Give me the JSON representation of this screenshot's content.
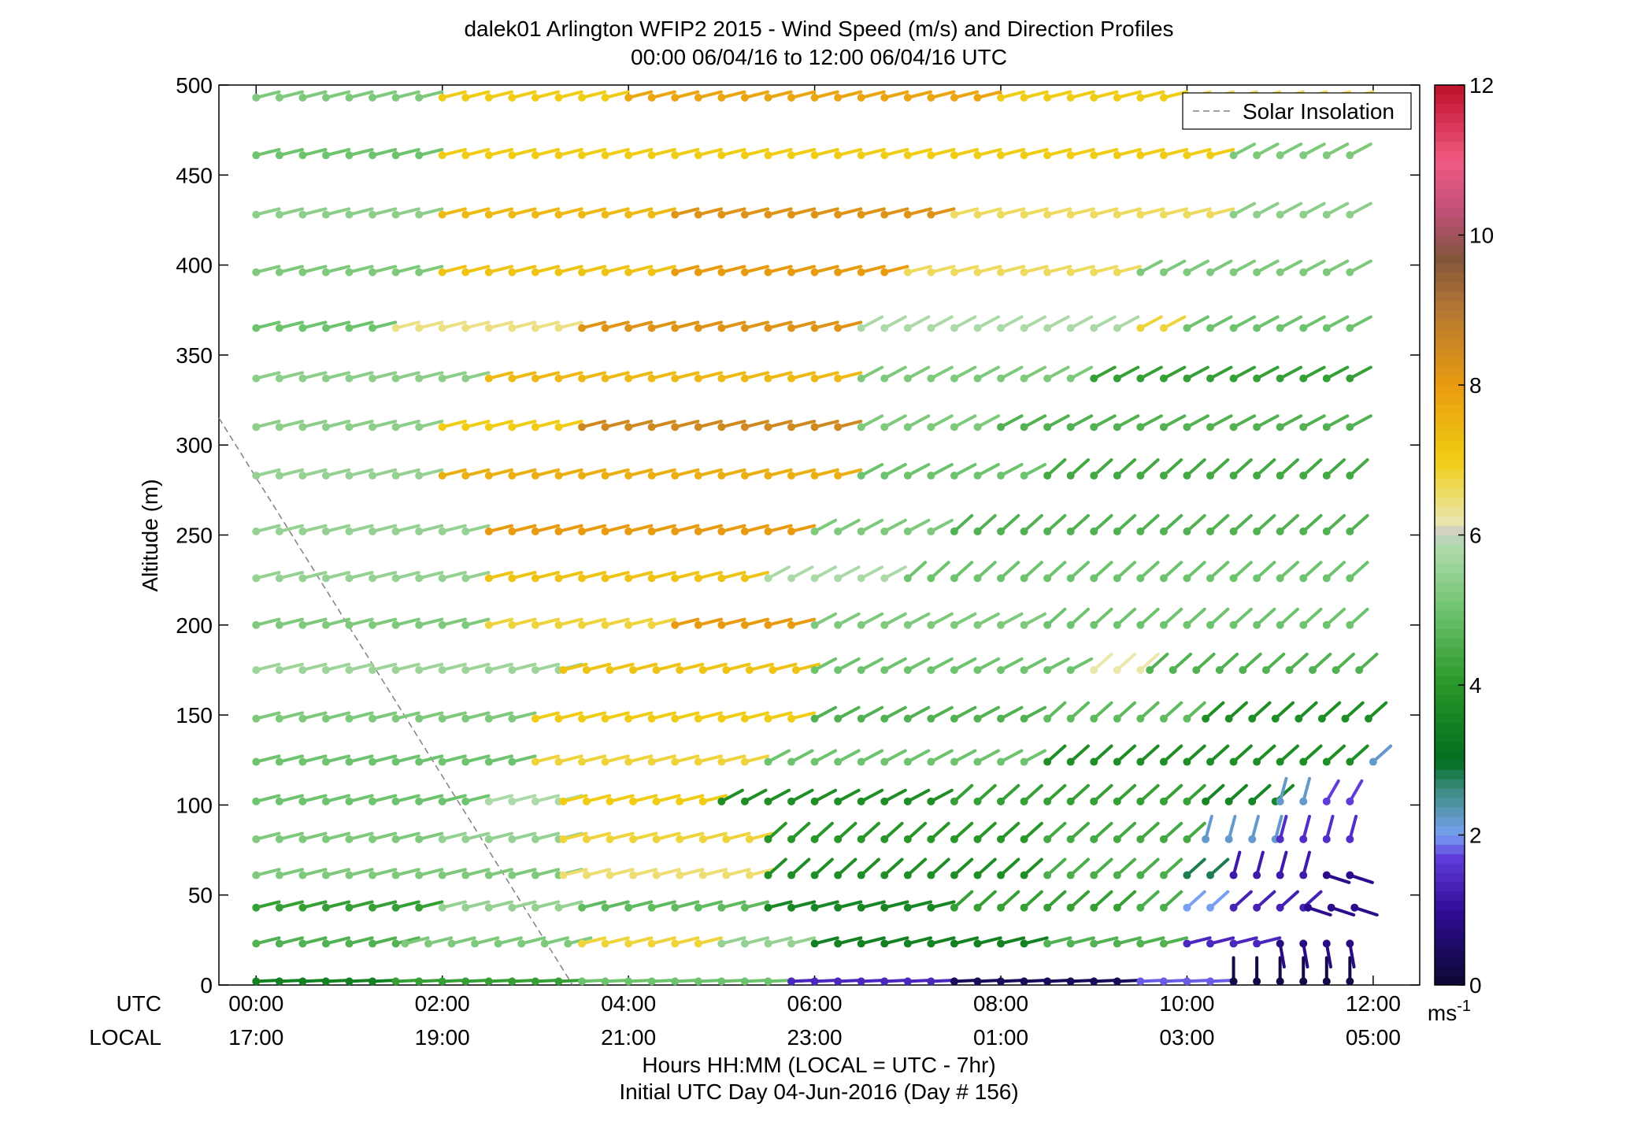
{
  "chart_data": {
    "type": "wind-barb-profile",
    "title_line1": "dalek01 Arlington WFIP2 2015 - Wind Speed (m/s) and Direction Profiles",
    "title_line2": "00:00 06/04/16 to 12:00 06/04/16  UTC",
    "ylabel": "Altitude (m)",
    "ylim": [
      0,
      500
    ],
    "yticks": [
      "0",
      "50",
      "100",
      "150",
      "200",
      "250",
      "300",
      "350",
      "400",
      "450",
      "500"
    ],
    "xlim_hours": [
      -0.4,
      12.5
    ],
    "utc_row_label": "UTC",
    "local_row_label": "LOCAL",
    "utc_ticks": [
      "00:00",
      "02:00",
      "04:00",
      "06:00",
      "08:00",
      "10:00",
      "12:00"
    ],
    "local_ticks": [
      "17:00",
      "19:00",
      "21:00",
      "23:00",
      "01:00",
      "03:00",
      "05:00"
    ],
    "xlabel_line1": "Hours HH:MM  (LOCAL = UTC - 7hr)",
    "xlabel_line2": "Initial UTC Day 04-Jun-2016 (Day # 156)",
    "legend": {
      "label": "Solar Insolation",
      "position": "top-right",
      "line_color": "#808080"
    },
    "solar_insolation_line": {
      "x_hours": [
        -0.4,
        3.4
      ],
      "y_m": [
        315,
        0
      ]
    },
    "colorbar": {
      "min": 0,
      "max": 12,
      "ticks": [
        "0",
        "2",
        "4",
        "6",
        "8",
        "10",
        "12"
      ],
      "unit_base": "ms",
      "unit_exp": "-1"
    },
    "time_step_hours": 0.25,
    "altitudes_m": [
      2,
      23,
      43,
      61,
      81,
      102,
      124,
      148,
      175,
      200,
      226,
      252,
      283,
      310,
      337,
      365,
      396,
      428,
      461,
      493
    ],
    "rows": [
      {
        "altitude": 2,
        "segments": [
          [
            0,
            1.5,
            3.5,
            "L"
          ],
          [
            1.5,
            3.5,
            4.2,
            "L"
          ],
          [
            3.5,
            5.8,
            5.0,
            "L"
          ],
          [
            5.75,
            7.5,
            1.4,
            "L"
          ],
          [
            7.5,
            9.5,
            0.4,
            "L"
          ],
          [
            9.5,
            10.5,
            1.8,
            "L"
          ],
          [
            10.5,
            12.0,
            0.2,
            "V"
          ]
        ]
      },
      {
        "altitude": 23,
        "segments": [
          [
            0,
            1.6,
            4.6,
            "W"
          ],
          [
            1.6,
            3.5,
            5.2,
            "W"
          ],
          [
            3.5,
            5.0,
            6.8,
            "W"
          ],
          [
            5.0,
            6.0,
            5.5,
            "W"
          ],
          [
            6.0,
            8.5,
            3.5,
            "W"
          ],
          [
            8.5,
            10.0,
            4.6,
            "W"
          ],
          [
            10.0,
            11.0,
            1.4,
            "W"
          ],
          [
            11.0,
            12.0,
            0.8,
            "N"
          ]
        ]
      },
      {
        "altitude": 43,
        "segments": [
          [
            0,
            2.0,
            4.2,
            "W"
          ],
          [
            2.0,
            3.5,
            5.5,
            "W"
          ],
          [
            3.5,
            5.5,
            4.8,
            "W"
          ],
          [
            5.5,
            7.5,
            3.6,
            "W"
          ],
          [
            7.5,
            9.5,
            4.2,
            "SW"
          ],
          [
            9.5,
            10.0,
            4.5,
            "SW"
          ],
          [
            10.0,
            10.5,
            2.0,
            "SW"
          ],
          [
            10.5,
            11.3,
            1.3,
            "SW"
          ],
          [
            11.3,
            12.0,
            0.9,
            "NW"
          ]
        ]
      },
      {
        "altitude": 61,
        "segments": [
          [
            0,
            3.3,
            5.2,
            "W"
          ],
          [
            3.3,
            5.5,
            6.5,
            "W"
          ],
          [
            5.5,
            8.5,
            3.8,
            "SW"
          ],
          [
            8.5,
            10.0,
            4.5,
            "SW"
          ],
          [
            10.0,
            10.5,
            2.8,
            "SW"
          ],
          [
            10.5,
            11.5,
            1.2,
            "S"
          ],
          [
            11.5,
            12.0,
            0.9,
            "NW"
          ]
        ]
      },
      {
        "altitude": 81,
        "segments": [
          [
            0,
            2.0,
            5.2,
            "W"
          ],
          [
            2.0,
            3.3,
            5.5,
            "W"
          ],
          [
            3.3,
            5.5,
            6.8,
            "W"
          ],
          [
            5.5,
            8.5,
            4.0,
            "SW"
          ],
          [
            8.5,
            10.2,
            4.4,
            "SW"
          ],
          [
            10.2,
            11.0,
            2.2,
            "S"
          ],
          [
            11.0,
            12.0,
            1.5,
            "S"
          ]
        ]
      },
      {
        "altitude": 102,
        "segments": [
          [
            0,
            2.5,
            5.0,
            "W"
          ],
          [
            2.5,
            3.3,
            5.8,
            "W"
          ],
          [
            3.3,
            5.0,
            7.0,
            "W"
          ],
          [
            5.0,
            7.5,
            3.8,
            "WSW"
          ],
          [
            7.5,
            10.2,
            4.2,
            "SW"
          ],
          [
            10.2,
            11.0,
            3.6,
            "SW"
          ],
          [
            11.0,
            11.5,
            2.2,
            "S"
          ],
          [
            11.5,
            12.0,
            1.7,
            "SSW"
          ]
        ]
      },
      {
        "altitude": 124,
        "segments": [
          [
            0,
            3.0,
            5.0,
            "W"
          ],
          [
            3.0,
            5.5,
            6.8,
            "W"
          ],
          [
            5.5,
            8.5,
            5.0,
            "WSW"
          ],
          [
            8.5,
            12.0,
            3.8,
            "SW"
          ],
          [
            12.0,
            12.01,
            2.2,
            "SW"
          ]
        ]
      },
      {
        "altitude": 148,
        "segments": [
          [
            0,
            3.0,
            5.2,
            "W"
          ],
          [
            3.0,
            6.0,
            7.0,
            "W"
          ],
          [
            6.0,
            8.5,
            4.6,
            "WSW"
          ],
          [
            8.5,
            10.2,
            4.8,
            "SW"
          ],
          [
            10.2,
            12.0,
            3.8,
            "SW"
          ]
        ]
      },
      {
        "altitude": 175,
        "segments": [
          [
            0,
            3.3,
            5.6,
            "W"
          ],
          [
            3.3,
            6.0,
            7.2,
            "W"
          ],
          [
            6.0,
            9.0,
            5.0,
            "WSW"
          ],
          [
            9.0,
            9.6,
            6.2,
            "SW"
          ],
          [
            9.6,
            12.0,
            4.6,
            "SW"
          ]
        ]
      },
      {
        "altitude": 200,
        "segments": [
          [
            0,
            2.5,
            5.2,
            "W"
          ],
          [
            2.5,
            4.5,
            6.8,
            "W"
          ],
          [
            4.5,
            6.0,
            8.0,
            "W"
          ],
          [
            6.0,
            8.5,
            5.2,
            "WSW"
          ],
          [
            8.5,
            12.0,
            5.0,
            "SW"
          ]
        ]
      },
      {
        "altitude": 226,
        "segments": [
          [
            0,
            2.5,
            5.5,
            "W"
          ],
          [
            2.5,
            5.5,
            7.2,
            "W"
          ],
          [
            5.5,
            7.0,
            5.8,
            "WSW"
          ],
          [
            7.0,
            12.0,
            5.0,
            "SW"
          ]
        ]
      },
      {
        "altitude": 252,
        "segments": [
          [
            0,
            2.5,
            5.5,
            "W"
          ],
          [
            2.5,
            6.0,
            8.0,
            "W"
          ],
          [
            6.0,
            7.5,
            5.2,
            "WSW"
          ],
          [
            7.5,
            12.0,
            4.6,
            "SW"
          ]
        ]
      },
      {
        "altitude": 283,
        "segments": [
          [
            0,
            2.0,
            5.5,
            "W"
          ],
          [
            2.0,
            6.5,
            7.6,
            "W"
          ],
          [
            6.5,
            8.5,
            5.0,
            "WSW"
          ],
          [
            8.5,
            12.0,
            4.4,
            "SW"
          ]
        ]
      },
      {
        "altitude": 310,
        "segments": [
          [
            0,
            2.0,
            5.4,
            "W"
          ],
          [
            2.0,
            3.5,
            7.0,
            "W"
          ],
          [
            3.5,
            6.5,
            8.5,
            "W"
          ],
          [
            6.5,
            8.0,
            5.2,
            "WSW"
          ],
          [
            8.0,
            12.0,
            4.6,
            "WSW"
          ]
        ]
      },
      {
        "altitude": 337,
        "segments": [
          [
            0,
            2.5,
            5.4,
            "W"
          ],
          [
            2.5,
            6.5,
            7.4,
            "W"
          ],
          [
            6.5,
            9.0,
            5.2,
            "WSW"
          ],
          [
            9.0,
            12.0,
            4.2,
            "WSW"
          ]
        ]
      },
      {
        "altitude": 365,
        "segments": [
          [
            0,
            1.5,
            5.0,
            "W"
          ],
          [
            1.5,
            3.5,
            6.4,
            "W"
          ],
          [
            3.5,
            6.5,
            8.2,
            "W"
          ],
          [
            6.5,
            9.5,
            5.8,
            "WSW"
          ],
          [
            9.5,
            10.0,
            6.8,
            "WSW"
          ],
          [
            10.0,
            12.0,
            5.0,
            "WSW"
          ]
        ]
      },
      {
        "altitude": 396,
        "segments": [
          [
            0,
            2.0,
            5.2,
            "W"
          ],
          [
            2.0,
            4.5,
            7.2,
            "W"
          ],
          [
            4.5,
            7.0,
            8.0,
            "W"
          ],
          [
            7.0,
            9.5,
            6.6,
            "W"
          ],
          [
            9.5,
            12.0,
            5.2,
            "WSW"
          ]
        ]
      },
      {
        "altitude": 428,
        "segments": [
          [
            0,
            2.0,
            5.4,
            "W"
          ],
          [
            2.0,
            4.5,
            7.4,
            "W"
          ],
          [
            4.5,
            7.5,
            8.2,
            "W"
          ],
          [
            7.5,
            10.5,
            6.6,
            "W"
          ],
          [
            10.5,
            12.0,
            5.4,
            "WSW"
          ]
        ]
      },
      {
        "altitude": 461,
        "segments": [
          [
            0,
            2.0,
            5.0,
            "W"
          ],
          [
            2.0,
            10.5,
            7.0,
            "W"
          ],
          [
            10.5,
            12.0,
            5.2,
            "WSW"
          ]
        ]
      },
      {
        "altitude": 493,
        "segments": [
          [
            0,
            2.0,
            5.2,
            "W"
          ],
          [
            2.0,
            4.0,
            7.0,
            "W"
          ],
          [
            4.0,
            8.0,
            7.8,
            "W"
          ],
          [
            8.0,
            10.0,
            7.0,
            "W"
          ],
          [
            10.0,
            12.0,
            6.6,
            "W"
          ]
        ]
      }
    ]
  }
}
